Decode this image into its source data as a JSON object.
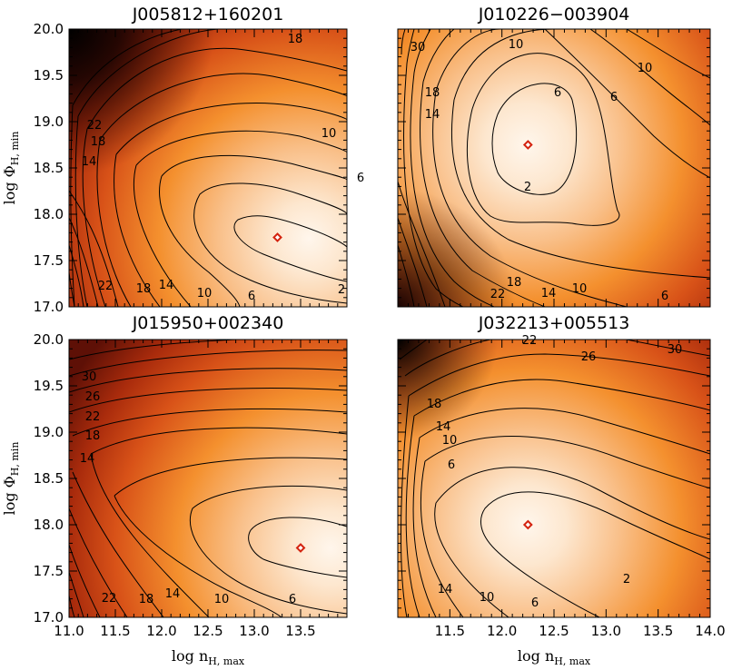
{
  "chart_data": [
    {
      "type": "heatmap",
      "title": "J005812+160201",
      "xlabel": "",
      "ylabel": "log Φ",
      "ylabel_sub": "H, min",
      "xlim": [
        11.0,
        14.0
      ],
      "ylim": [
        17.0,
        20.0
      ],
      "x_ticks": [],
      "y_ticks": [
        "17.0",
        "17.5",
        "18.0",
        "18.5",
        "19.0",
        "19.5",
        "20.0"
      ],
      "contour_labels": [
        "2",
        "6",
        "10",
        "14",
        "18",
        "22",
        "14",
        "18",
        "22",
        "10",
        "6",
        "18"
      ],
      "best_fit": {
        "x": 13.25,
        "y": 17.75
      }
    },
    {
      "type": "heatmap",
      "title": "J010226−003904",
      "xlabel": "",
      "ylabel": "",
      "xlim": [
        11.0,
        14.0
      ],
      "ylim": [
        17.0,
        20.0
      ],
      "x_ticks": [],
      "y_ticks": [],
      "contour_labels": [
        "2",
        "6",
        "10",
        "14",
        "18",
        "22",
        "30",
        "10",
        "6",
        "14",
        "18",
        "10",
        "6"
      ],
      "best_fit": {
        "x": 12.25,
        "y": 18.75
      }
    },
    {
      "type": "heatmap",
      "title": "J015950+002340",
      "xlabel": "log n",
      "xlabel_sub": "H, max",
      "ylabel": "log Φ",
      "ylabel_sub": "H, min",
      "xlim": [
        11.0,
        14.0
      ],
      "ylim": [
        17.0,
        20.0
      ],
      "x_ticks": [
        "11.0",
        "11.5",
        "12.0",
        "12.5",
        "13.0",
        "13.5"
      ],
      "y_ticks": [
        "17.0",
        "17.5",
        "18.0",
        "18.5",
        "19.0",
        "19.5",
        "20.0"
      ],
      "contour_labels": [
        "30",
        "26",
        "22",
        "18",
        "14",
        "6",
        "10",
        "14",
        "18",
        "22"
      ],
      "best_fit": {
        "x": 13.5,
        "y": 17.75
      }
    },
    {
      "type": "heatmap",
      "title": "J032213+005513",
      "xlabel": "log n",
      "xlabel_sub": "H, max",
      "ylabel": "",
      "xlim": [
        11.0,
        14.0
      ],
      "ylim": [
        17.0,
        20.0
      ],
      "x_ticks": [
        "11.5",
        "12.0",
        "12.5",
        "13.0",
        "13.5",
        "14.0"
      ],
      "y_ticks": [],
      "contour_labels": [
        "30",
        "26",
        "22",
        "18",
        "14",
        "10",
        "6",
        "2",
        "6",
        "10",
        "14"
      ],
      "best_fit": {
        "x": 12.25,
        "y": 18.0
      }
    }
  ]
}
